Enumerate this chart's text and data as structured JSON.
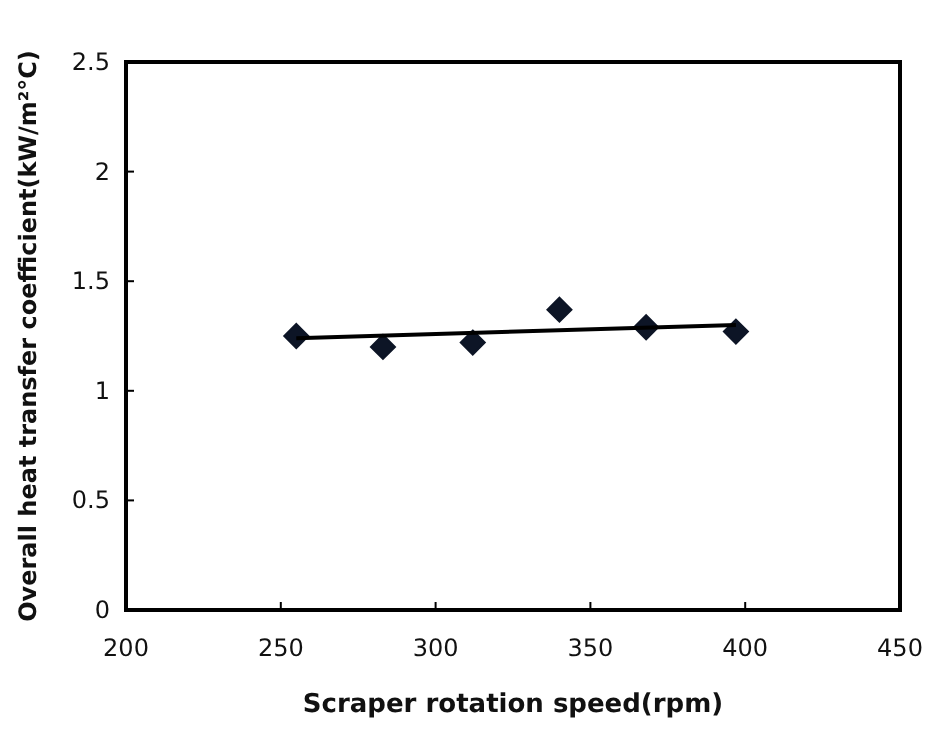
{
  "chart_data": {
    "type": "scatter",
    "xlabel": "Scraper rotation speed(rpm)",
    "ylabel": "Overall heat transfer coefficient(kW/m²°C)",
    "xlim": [
      200,
      450
    ],
    "xticks": [
      200,
      250,
      300,
      350,
      400,
      450
    ],
    "ylim": [
      0,
      2.5
    ],
    "yticks": [
      0,
      0.5,
      1,
      1.5,
      2,
      2.5
    ],
    "grid": false,
    "marker": "diamond",
    "series": [
      {
        "color": "#0d1526",
        "x": [
          255,
          283,
          312,
          340,
          368,
          397
        ],
        "values": [
          1.25,
          1.2,
          1.22,
          1.37,
          1.29,
          1.27
        ]
      },
      {
        "type": "line",
        "color": "#000000",
        "marker": "none",
        "x": [
          255,
          397
        ],
        "values": [
          1.24,
          1.3
        ]
      }
    ]
  }
}
